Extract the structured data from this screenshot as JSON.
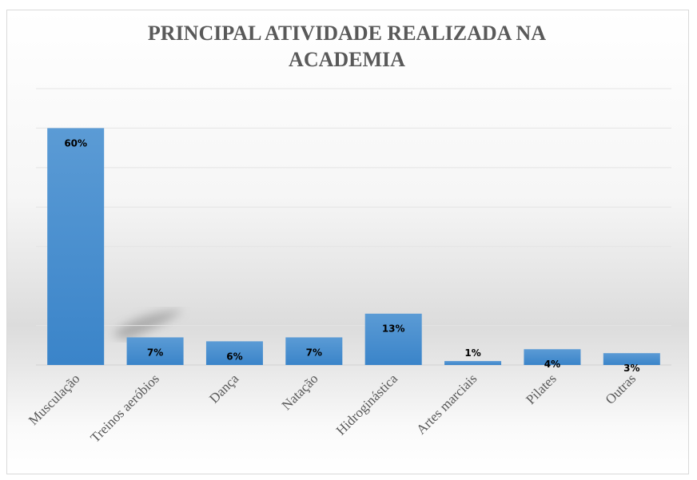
{
  "chart_data": {
    "type": "bar",
    "title": "PRINCIPAL ATIVIDADE REALIZADA NA ACADEMIA",
    "title_lines": [
      "PRINCIPAL ATIVIDADE REALIZADA NA",
      "ACADEMIA"
    ],
    "categories": [
      "Musculação",
      "Treinos aeróbios",
      "Dança",
      "Natação",
      "Hidroginástica",
      "Artes marciais",
      "Pilates",
      "Outras"
    ],
    "values": [
      60,
      7,
      6,
      7,
      13,
      1,
      4,
      3
    ],
    "data_labels": [
      "60%",
      "7%",
      "6%",
      "7%",
      "13%",
      "1%",
      "4%",
      "3%"
    ],
    "xlabel": "",
    "ylabel": "",
    "ylim": [
      0,
      70
    ],
    "grid": true,
    "bar_color": "#4a8fd3"
  }
}
